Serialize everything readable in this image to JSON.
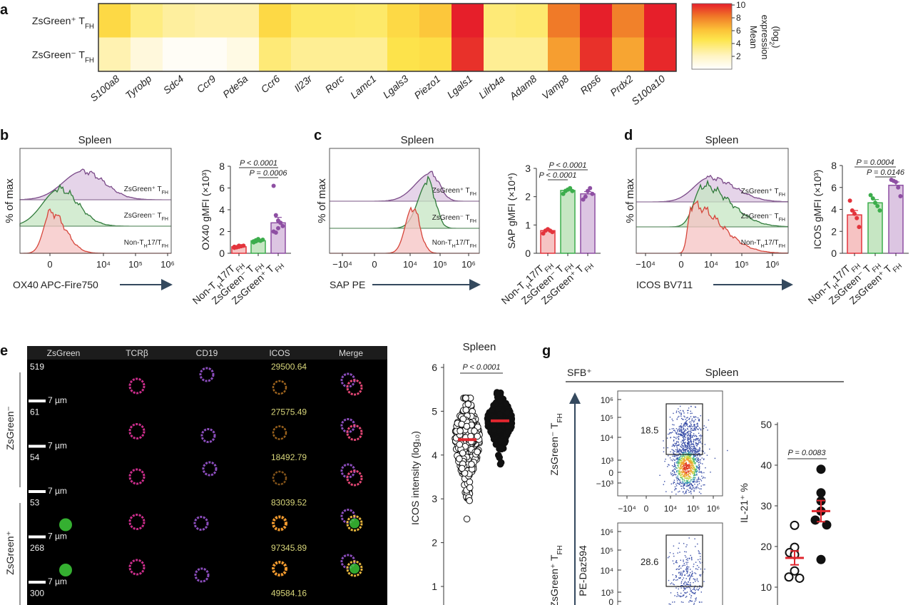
{
  "panel_labels": {
    "a": "a",
    "b": "b",
    "c": "c",
    "d": "d",
    "e": "e",
    "g": "g"
  },
  "labels": {
    "zsg_pos": [
      {
        "t": "ZsGreen⁺ T"
      },
      {
        "t": "FH",
        "sub": true
      }
    ],
    "zsg_neg": [
      {
        "t": "ZsGreen⁻ T"
      },
      {
        "t": "FH",
        "sub": true
      }
    ],
    "non": [
      {
        "t": "Non-T"
      },
      {
        "t": "H",
        "sub": true
      },
      {
        "t": "17/T"
      },
      {
        "t": "FH",
        "sub": true
      }
    ]
  },
  "colors": {
    "red": "#e3343c",
    "green": "#3cad4c",
    "purple": "#8e4fa3",
    "red_fill": "#f6c3c3",
    "green_fill": "#c6e6c3",
    "purple_fill": "#dcc5e2",
    "median": "#e0262e"
  },
  "chart_data": [
    {
      "type": "heatmap",
      "panel": "a",
      "rows": [
        [
          {
            "t": "ZsGreen⁺ T"
          },
          {
            "t": "FH",
            "sub": true
          }
        ],
        [
          {
            "t": "ZsGreen⁻ T"
          },
          {
            "t": "FH",
            "sub": true
          }
        ]
      ],
      "columns": [
        "S100a8",
        "Tyrobp",
        "Sdc4",
        "Ccr9",
        "Pde5a",
        "Ccr6",
        "Il23r",
        "Rorc",
        "Lamc1",
        "Lgals3",
        "Piezo1",
        "Lgals1",
        "Lilrb4a",
        "Adam8",
        "Vamp8",
        "Rps6",
        "Prdx2",
        "S100a10"
      ],
      "values": [
        [
          5.0,
          3.4,
          2.8,
          2.6,
          2.6,
          5.0,
          4.0,
          4.0,
          3.9,
          5.0,
          5.8,
          10,
          3.6,
          3.8,
          8.0,
          10,
          7.8,
          10
        ],
        [
          2.4,
          1.2,
          0.3,
          0.3,
          0.9,
          3.6,
          3.0,
          3.0,
          3.0,
          4.6,
          4.8,
          9.6,
          3.0,
          3.0,
          7.0,
          9.6,
          6.8,
          9.8
        ]
      ],
      "colorbar": {
        "range": [
          0,
          10
        ],
        "ticks": [
          2,
          4,
          6,
          8,
          10
        ],
        "title_lines": [
          "Mean",
          "expression"
        ],
        "title_log": "(log",
        "title_sub": "2",
        "title_end": ")"
      }
    },
    {
      "type": "histogram",
      "panel": "b",
      "title": "Spleen",
      "ylabel": "% of max",
      "xlabel": "OX40 APC-Fire750",
      "xticks": [
        {
          "v": 0,
          "label": "0"
        },
        {
          "v": 10000,
          "label": "10⁴"
        },
        {
          "v": 100000,
          "label": "10⁵"
        },
        {
          "v": 1000000,
          "label": "10⁶"
        }
      ],
      "series": [
        {
          "name": [
            {
              "t": "ZsGreen⁺ T"
            },
            {
              "t": "FH",
              "sub": true
            }
          ],
          "mode": 2000
        },
        {
          "name": [
            {
              "t": "ZsGreen⁻ T"
            },
            {
              "t": "FH",
              "sub": true
            }
          ],
          "mode": 250
        },
        {
          "name": [
            {
              "t": "Non-T"
            },
            {
              "t": "H",
              "sub": true
            },
            {
              "t": "17/T"
            },
            {
              "t": "FH",
              "sub": true
            }
          ],
          "mode": 20
        }
      ]
    },
    {
      "type": "bar",
      "panel": "b",
      "ylabel": "OX40 gMFI (×10³)",
      "ylim": [
        0,
        8
      ],
      "yticks": [
        0,
        2,
        4,
        6,
        8
      ],
      "categories": [
        [
          {
            "t": "Non-T"
          },
          {
            "t": "H",
            "sub": true
          },
          {
            "t": "17/T"
          },
          {
            "t": "FH",
            "sub": true
          }
        ],
        [
          {
            "t": "ZsGreen⁻ T"
          },
          {
            "t": "FH",
            "sub": true
          }
        ],
        [
          {
            "t": "ZsGreen⁺ T"
          },
          {
            "t": "FH",
            "sub": true
          }
        ]
      ],
      "values": [
        0.6,
        1.15,
        2.8
      ],
      "sem": [
        0.05,
        0.05,
        0.5
      ],
      "points": [
        [
          0.5,
          0.55,
          0.6,
          0.65,
          0.7,
          0.6,
          0.55,
          0.7
        ],
        [
          1.0,
          1.1,
          1.2,
          1.15,
          1.25,
          1.1,
          1.2,
          1.3
        ],
        [
          6.2,
          3.5,
          3.0,
          2.8,
          2.5,
          2.0,
          1.9,
          2.3,
          2.8
        ]
      ],
      "comparisons": [
        {
          "groups": [
            0,
            2
          ],
          "label": "P < 0.0001"
        },
        {
          "groups": [
            1,
            2
          ],
          "label": "P = 0.0006"
        }
      ]
    },
    {
      "type": "histogram",
      "panel": "c",
      "title": "Spleen",
      "ylabel": "% of max",
      "xlabel": "SAP PE",
      "xticks": [
        {
          "v": -10000,
          "label": "−10⁴"
        },
        {
          "v": 0,
          "label": "0"
        },
        {
          "v": 10000,
          "label": "10⁴"
        },
        {
          "v": 100000,
          "label": "10⁵"
        },
        {
          "v": 1000000,
          "label": "10⁶"
        }
      ],
      "series": [
        {
          "name": [
            {
              "t": "ZsGreen⁺ T"
            },
            {
              "t": "FH",
              "sub": true
            }
          ],
          "mode": 50000
        },
        {
          "name": [
            {
              "t": "ZsGreen⁻ T"
            },
            {
              "t": "FH",
              "sub": true
            }
          ],
          "mode": 40000
        },
        {
          "name": [
            {
              "t": "Non-T"
            },
            {
              "t": "H",
              "sub": true
            },
            {
              "t": "17/T"
            },
            {
              "t": "FH",
              "sub": true
            }
          ],
          "mode": 12000
        }
      ]
    },
    {
      "type": "bar",
      "panel": "c",
      "ylabel": "SAP gMFI (×10⁴)",
      "ylim": [
        0,
        3
      ],
      "yticks": [
        0,
        1,
        2,
        3
      ],
      "categories": [
        [
          {
            "t": "Non-T"
          },
          {
            "t": "H",
            "sub": true
          },
          {
            "t": "17/T"
          },
          {
            "t": "FH",
            "sub": true
          }
        ],
        [
          {
            "t": "ZsGreen⁻ T"
          },
          {
            "t": "FH",
            "sub": true
          }
        ],
        [
          {
            "t": "ZsGreen⁺ T"
          },
          {
            "t": "FH",
            "sub": true
          }
        ]
      ],
      "values": [
        0.8,
        2.22,
        2.1
      ],
      "sem": [
        0.04,
        0.04,
        0.08
      ],
      "points": [
        [
          0.7,
          0.8,
          0.85,
          0.8,
          0.75
        ],
        [
          2.1,
          2.2,
          2.25,
          2.3,
          2.2
        ],
        [
          1.9,
          2.0,
          2.2,
          2.3,
          2.1
        ]
      ],
      "comparisons": [
        {
          "groups": [
            0,
            2
          ],
          "label": "P < 0.0001"
        },
        {
          "groups": [
            0,
            1
          ],
          "label": "P < 0.0001"
        }
      ]
    },
    {
      "type": "histogram",
      "panel": "d",
      "title": "Spleen",
      "ylabel": "% of max",
      "xlabel": "ICOS BV711",
      "xticks": [
        {
          "v": -10000,
          "label": "−10⁴"
        },
        {
          "v": 0,
          "label": "0"
        },
        {
          "v": 10000,
          "label": "10⁴"
        },
        {
          "v": 100000,
          "label": "10⁵"
        },
        {
          "v": 1000000,
          "label": "10⁶"
        }
      ],
      "series": [
        {
          "name": [
            {
              "t": "ZsGreen⁺ T"
            },
            {
              "t": "FH",
              "sub": true
            }
          ],
          "mode": 8000
        },
        {
          "name": [
            {
              "t": "ZsGreen⁻ T"
            },
            {
              "t": "FH",
              "sub": true
            }
          ],
          "mode": 3000
        },
        {
          "name": [
            {
              "t": "Non-T"
            },
            {
              "t": "H",
              "sub": true
            },
            {
              "t": "17/T"
            },
            {
              "t": "FH",
              "sub": true
            }
          ],
          "mode": 600
        }
      ]
    },
    {
      "type": "bar",
      "panel": "d",
      "ylabel": "ICOS gMFI (×10³)",
      "ylim": [
        0,
        8
      ],
      "yticks": [
        0,
        2,
        4,
        6,
        8
      ],
      "categories": [
        [
          {
            "t": "Non-T"
          },
          {
            "t": "H",
            "sub": true
          },
          {
            "t": "17/T"
          },
          {
            "t": "FH",
            "sub": true
          }
        ],
        [
          {
            "t": "ZsGreen⁻ T"
          },
          {
            "t": "FH",
            "sub": true
          }
        ],
        [
          {
            "t": "ZsGreen⁺ T"
          },
          {
            "t": "FH",
            "sub": true
          }
        ]
      ],
      "values": [
        3.5,
        4.6,
        6.2
      ],
      "sem": [
        0.4,
        0.3,
        0.3
      ],
      "points": [
        [
          4.8,
          3.9,
          3.6,
          3.2,
          2.4
        ],
        [
          5.3,
          5.0,
          4.6,
          4.3,
          3.9
        ],
        [
          6.7,
          6.6,
          6.5,
          6.0,
          5.2
        ]
      ],
      "comparisons": [
        {
          "groups": [
            0,
            2
          ],
          "label": "P = 0.0004"
        },
        {
          "groups": [
            1,
            2
          ],
          "label": "P = 0.0146"
        }
      ]
    },
    {
      "type": "scatter",
      "panel": "e",
      "title": "Spleen",
      "ylabel": "ICOS intensity (log₁₀)",
      "ylim": [
        1,
        6
      ],
      "yticks": [
        1,
        2,
        3,
        4,
        5,
        6
      ],
      "groups": [
        {
          "style": "open",
          "median": 4.35,
          "range": [
            2.1,
            5.3
          ]
        },
        {
          "style": "filled",
          "median": 4.78,
          "range": [
            3.6,
            5.65
          ]
        }
      ],
      "comparison": "P < 0.0001"
    },
    {
      "type": "scatter",
      "panel": "g",
      "title": "Spleen",
      "condition": "SFB⁺",
      "ylabel": "PE-Daz594",
      "yticks": [
        "10⁶",
        "10⁵",
        "10⁴",
        "10³",
        "0",
        "−10³"
      ],
      "xticks": [
        "−10⁴",
        "0",
        "10⁴",
        "10⁵",
        "10⁶"
      ],
      "plots": [
        {
          "row": [
            {
              "t": "ZsGreen⁻ T"
            },
            {
              "t": "FH",
              "sub": true
            }
          ],
          "gate_percent": "18.5"
        },
        {
          "row": [
            {
              "t": "ZsGreen⁺ T"
            },
            {
              "t": "FH",
              "sub": true
            }
          ],
          "gate_percent": "28.6"
        }
      ]
    },
    {
      "type": "scatter",
      "panel": "g",
      "ylabel": "IL-21⁺ %",
      "ylim": [
        10,
        50
      ],
      "yticks": [
        10,
        20,
        30,
        40,
        50
      ],
      "groups": [
        {
          "style": "open",
          "values": [
            25.2,
            19.8,
            18.5,
            18.0,
            14.0,
            12.5,
            12.2
          ],
          "mean": 17.2,
          "sem": 1.7
        },
        {
          "style": "filled",
          "values": [
            39.0,
            33.2,
            31.2,
            28.7,
            26.5,
            25.3,
            16.8
          ],
          "mean": 28.7,
          "sem": 2.6
        }
      ],
      "comparison": "P = 0.0083"
    }
  ],
  "panel_e": {
    "columns": [
      "ZsGreen",
      "TCRβ",
      "CD19",
      "ICOS",
      "Merge"
    ],
    "scale_bar": "7 µm",
    "groups": [
      "ZsGreen⁻",
      "ZsGreen⁺"
    ],
    "rows": [
      {
        "id": "519",
        "icos": "29500.64",
        "zsgreen": false
      },
      {
        "id": "61",
        "icos": "27575.49",
        "zsgreen": false
      },
      {
        "id": "54",
        "icos": "18492.79",
        "zsgreen": false
      },
      {
        "id": "53",
        "icos": "83039.52",
        "zsgreen": true
      },
      {
        "id": "268",
        "icos": "97345.89",
        "zsgreen": true
      },
      {
        "id": "300",
        "icos": "49584.16",
        "zsgreen": true
      }
    ]
  }
}
